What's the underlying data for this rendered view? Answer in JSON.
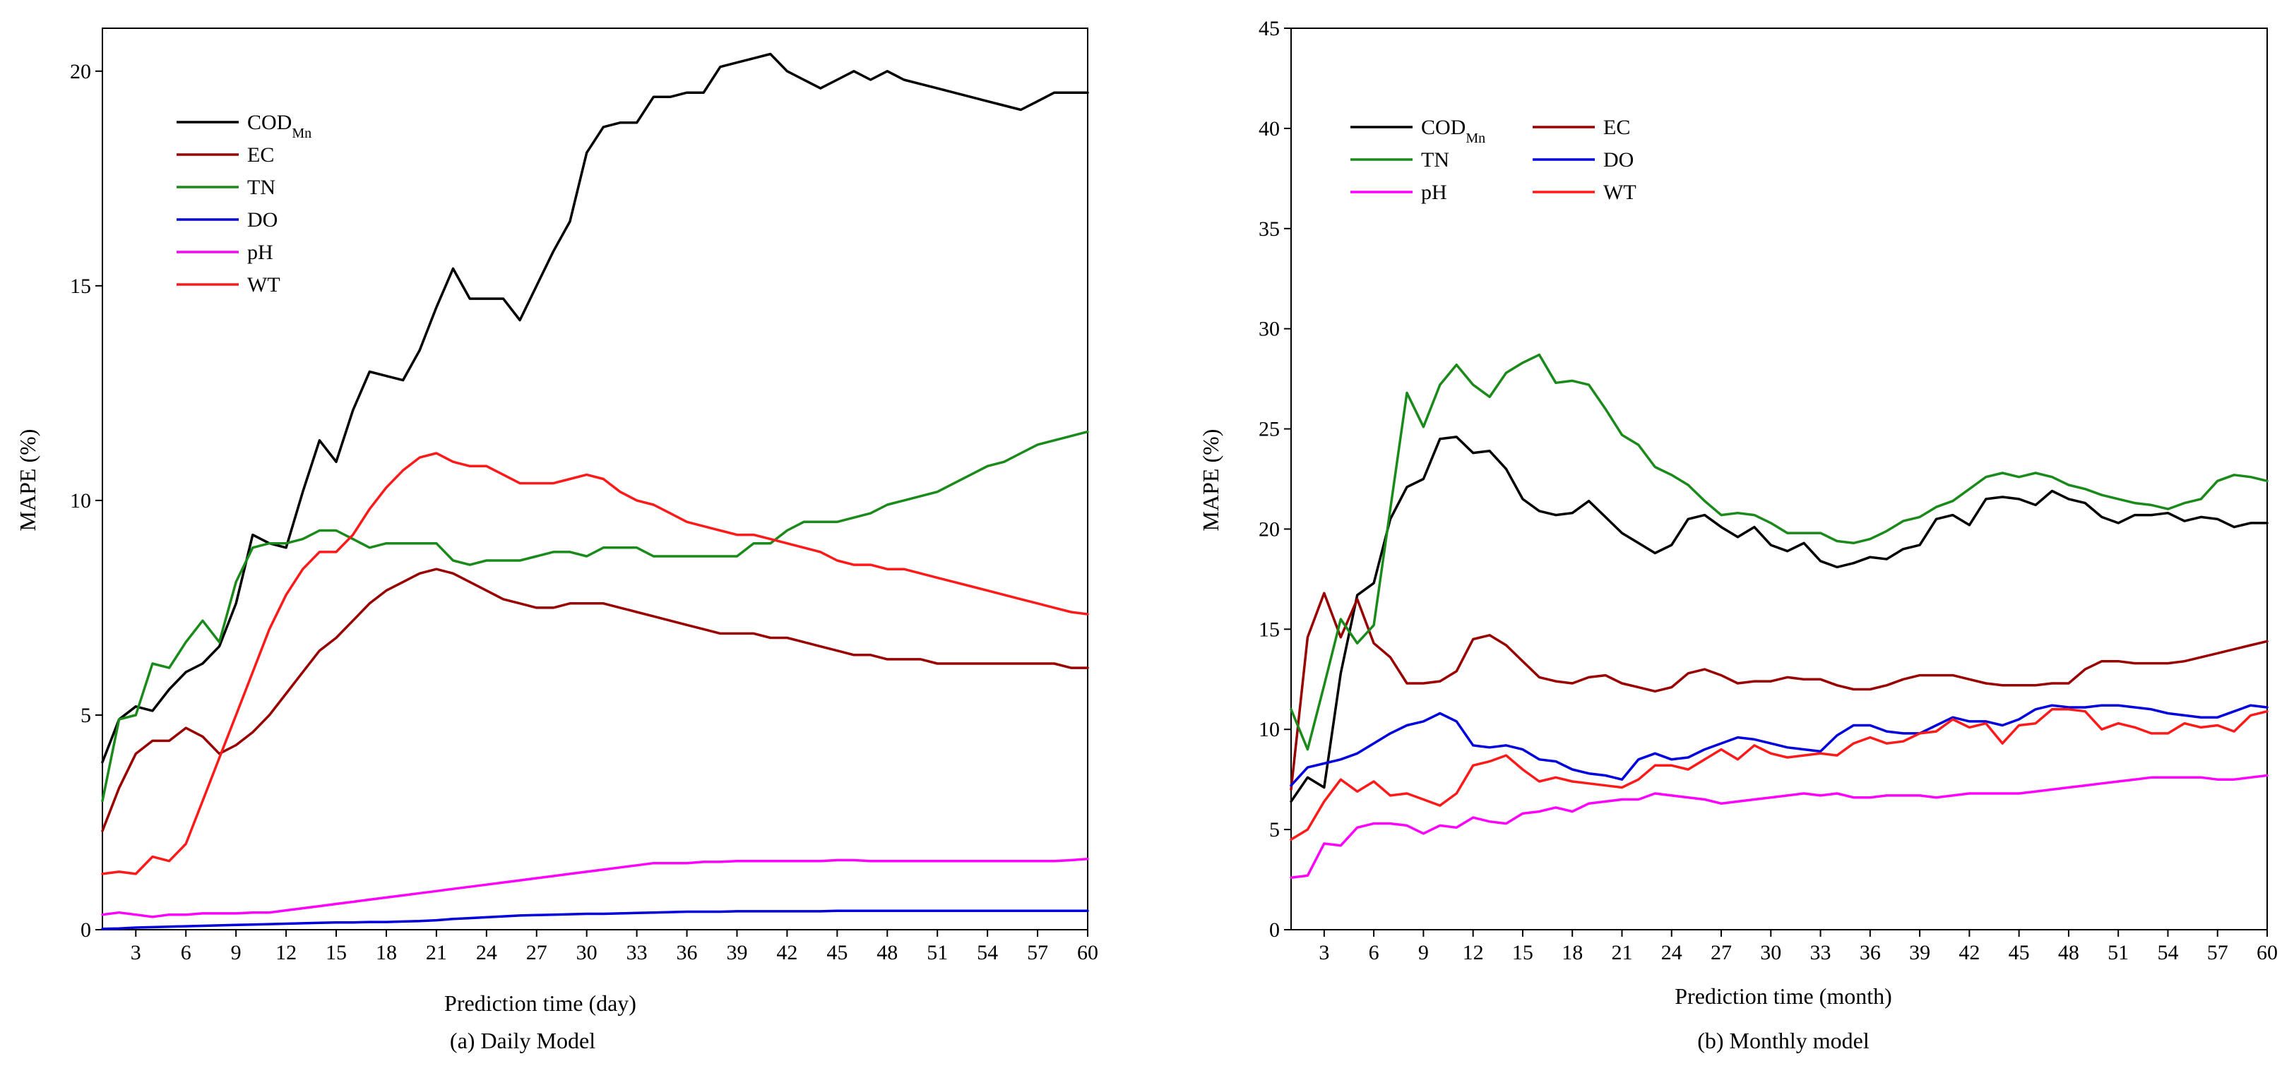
{
  "chart_data": [
    {
      "type": "line",
      "caption": "(a) Daily Model",
      "xlabel": "Prediction time (day)",
      "ylabel": "MAPE (%)",
      "xlim": [
        1,
        60
      ],
      "ylim": [
        0,
        21
      ],
      "xticks": [
        3,
        6,
        9,
        12,
        15,
        18,
        21,
        24,
        27,
        30,
        33,
        36,
        39,
        42,
        45,
        48,
        51,
        54,
        57,
        60
      ],
      "yticks": [
        0,
        5,
        10,
        15,
        20
      ],
      "legend_position": "upper-left",
      "legend_columns": 1,
      "series": [
        {
          "name": "COD",
          "subscript": "Mn",
          "color": "#000000",
          "values": [
            3.9,
            4.9,
            5.2,
            5.1,
            5.6,
            6.0,
            6.2,
            6.6,
            7.6,
            9.2,
            9.0,
            8.9,
            10.2,
            11.4,
            10.9,
            12.1,
            13.0,
            12.9,
            12.8,
            13.5,
            14.5,
            15.4,
            14.7,
            14.7,
            14.7,
            14.2,
            15.0,
            15.8,
            16.5,
            18.1,
            18.7,
            18.8,
            18.8,
            19.4,
            19.4,
            19.5,
            19.5,
            20.1,
            20.2,
            20.3,
            20.4,
            20.0,
            19.8,
            19.6,
            19.8,
            20.0,
            19.8,
            20.0,
            19.8,
            19.7,
            19.6,
            19.5,
            19.4,
            19.3,
            19.2,
            19.1,
            19.3,
            19.5,
            19.5,
            19.5
          ]
        },
        {
          "name": "EC",
          "color": "#990000",
          "values": [
            2.3,
            3.3,
            4.1,
            4.4,
            4.4,
            4.7,
            4.5,
            4.1,
            4.3,
            4.6,
            5.0,
            5.5,
            6.0,
            6.5,
            6.8,
            7.2,
            7.6,
            7.9,
            8.1,
            8.3,
            8.4,
            8.3,
            8.1,
            7.9,
            7.7,
            7.6,
            7.5,
            7.5,
            7.6,
            7.6,
            7.6,
            7.5,
            7.4,
            7.3,
            7.2,
            7.1,
            7.0,
            6.9,
            6.9,
            6.9,
            6.8,
            6.8,
            6.7,
            6.6,
            6.5,
            6.4,
            6.4,
            6.3,
            6.3,
            6.3,
            6.2,
            6.2,
            6.2,
            6.2,
            6.2,
            6.2,
            6.2,
            6.2,
            6.1,
            6.1
          ]
        },
        {
          "name": "TN",
          "color": "#1a8a1a",
          "values": [
            3.0,
            4.9,
            5.0,
            6.2,
            6.1,
            6.7,
            7.2,
            6.7,
            8.1,
            8.9,
            9.0,
            9.0,
            9.1,
            9.3,
            9.3,
            9.1,
            8.9,
            9.0,
            9.0,
            9.0,
            9.0,
            8.6,
            8.5,
            8.6,
            8.6,
            8.6,
            8.7,
            8.8,
            8.8,
            8.7,
            8.9,
            8.9,
            8.9,
            8.7,
            8.7,
            8.7,
            8.7,
            8.7,
            8.7,
            9.0,
            9.0,
            9.3,
            9.5,
            9.5,
            9.5,
            9.6,
            9.7,
            9.9,
            10.0,
            10.1,
            10.2,
            10.4,
            10.6,
            10.8,
            10.9,
            11.1,
            11.3,
            11.4,
            11.5,
            11.6
          ]
        },
        {
          "name": "DO",
          "color": "#0000dd",
          "values": [
            0.02,
            0.03,
            0.05,
            0.06,
            0.07,
            0.08,
            0.09,
            0.1,
            0.11,
            0.12,
            0.13,
            0.14,
            0.15,
            0.16,
            0.17,
            0.17,
            0.18,
            0.18,
            0.19,
            0.2,
            0.22,
            0.25,
            0.27,
            0.29,
            0.31,
            0.33,
            0.34,
            0.35,
            0.36,
            0.37,
            0.37,
            0.38,
            0.39,
            0.4,
            0.41,
            0.42,
            0.42,
            0.42,
            0.43,
            0.43,
            0.43,
            0.43,
            0.43,
            0.43,
            0.44,
            0.44,
            0.44,
            0.44,
            0.44,
            0.44,
            0.44,
            0.44,
            0.44,
            0.44,
            0.44,
            0.44,
            0.44,
            0.44,
            0.44,
            0.44
          ]
        },
        {
          "name": "pH",
          "color": "#ff00ff",
          "values": [
            0.35,
            0.4,
            0.35,
            0.3,
            0.35,
            0.35,
            0.38,
            0.38,
            0.38,
            0.4,
            0.4,
            0.45,
            0.5,
            0.55,
            0.6,
            0.65,
            0.7,
            0.75,
            0.8,
            0.85,
            0.9,
            0.95,
            1.0,
            1.05,
            1.1,
            1.15,
            1.2,
            1.25,
            1.3,
            1.35,
            1.4,
            1.45,
            1.5,
            1.55,
            1.55,
            1.55,
            1.58,
            1.58,
            1.6,
            1.6,
            1.6,
            1.6,
            1.6,
            1.6,
            1.62,
            1.62,
            1.6,
            1.6,
            1.6,
            1.6,
            1.6,
            1.6,
            1.6,
            1.6,
            1.6,
            1.6,
            1.6,
            1.6,
            1.62,
            1.65
          ]
        },
        {
          "name": "WT",
          "color": "#ff1a1a",
          "values": [
            1.3,
            1.35,
            1.3,
            1.7,
            1.6,
            2.0,
            3.0,
            4.0,
            5.0,
            6.0,
            7.0,
            7.8,
            8.4,
            8.8,
            8.8,
            9.2,
            9.8,
            10.3,
            10.7,
            11.0,
            11.1,
            10.9,
            10.8,
            10.8,
            10.6,
            10.4,
            10.4,
            10.4,
            10.5,
            10.6,
            10.5,
            10.2,
            10.0,
            9.9,
            9.7,
            9.5,
            9.4,
            9.3,
            9.2,
            9.2,
            9.1,
            9.0,
            8.9,
            8.8,
            8.6,
            8.5,
            8.5,
            8.4,
            8.4,
            8.3,
            8.2,
            8.1,
            8.0,
            7.9,
            7.8,
            7.7,
            7.6,
            7.5,
            7.4,
            7.35
          ]
        }
      ]
    },
    {
      "type": "line",
      "caption": "(b) Monthly model",
      "xlabel": "Prediction time (month)",
      "ylabel": "MAPE (%)",
      "xlim": [
        1,
        60
      ],
      "ylim": [
        0,
        45
      ],
      "xticks": [
        3,
        6,
        9,
        12,
        15,
        18,
        21,
        24,
        27,
        30,
        33,
        36,
        39,
        42,
        45,
        48,
        51,
        54,
        57,
        60
      ],
      "yticks": [
        0,
        5,
        10,
        15,
        20,
        25,
        30,
        35,
        40,
        45
      ],
      "legend_position": "upper-left",
      "legend_columns": 2,
      "series": [
        {
          "name": "COD",
          "subscript": "Mn",
          "color": "#000000",
          "values": [
            6.4,
            7.6,
            7.1,
            12.8,
            16.7,
            17.3,
            20.5,
            22.1,
            22.5,
            24.5,
            24.6,
            23.8,
            23.9,
            23.0,
            21.5,
            20.9,
            20.7,
            20.8,
            21.4,
            20.6,
            19.8,
            19.3,
            18.8,
            19.2,
            20.5,
            20.7,
            20.1,
            19.6,
            20.1,
            19.2,
            18.9,
            19.3,
            18.4,
            18.1,
            18.3,
            18.6,
            18.5,
            19.0,
            19.2,
            20.5,
            20.7,
            20.2,
            21.5,
            21.6,
            21.5,
            21.2,
            21.9,
            21.5,
            21.3,
            20.6,
            20.3,
            20.7,
            20.7,
            20.8,
            20.4,
            20.6,
            20.5,
            20.1,
            20.3,
            20.3
          ]
        },
        {
          "name": "EC",
          "color": "#990000",
          "values": [
            7.0,
            14.6,
            16.8,
            14.6,
            16.5,
            14.3,
            13.6,
            12.3,
            12.3,
            12.4,
            12.9,
            14.5,
            14.7,
            14.2,
            13.4,
            12.6,
            12.4,
            12.3,
            12.6,
            12.7,
            12.3,
            12.1,
            11.9,
            12.1,
            12.8,
            13.0,
            12.7,
            12.3,
            12.4,
            12.4,
            12.6,
            12.5,
            12.5,
            12.2,
            12.0,
            12.0,
            12.2,
            12.5,
            12.7,
            12.7,
            12.7,
            12.5,
            12.3,
            12.2,
            12.2,
            12.2,
            12.3,
            12.3,
            13.0,
            13.4,
            13.4,
            13.3,
            13.3,
            13.3,
            13.4,
            13.6,
            13.8,
            14.0,
            14.2,
            14.4
          ]
        },
        {
          "name": "TN",
          "color": "#1a8a1a",
          "values": [
            11.0,
            9.0,
            12.2,
            15.5,
            14.3,
            15.2,
            21.0,
            26.8,
            25.1,
            27.2,
            28.2,
            27.2,
            26.6,
            27.8,
            28.3,
            28.7,
            27.3,
            27.4,
            27.2,
            26.0,
            24.7,
            24.2,
            23.1,
            22.7,
            22.2,
            21.4,
            20.7,
            20.8,
            20.7,
            20.3,
            19.8,
            19.8,
            19.8,
            19.4,
            19.3,
            19.5,
            19.9,
            20.4,
            20.6,
            21.1,
            21.4,
            22.0,
            22.6,
            22.8,
            22.6,
            22.8,
            22.6,
            22.2,
            22.0,
            21.7,
            21.5,
            21.3,
            21.2,
            21.0,
            21.3,
            21.5,
            22.4,
            22.7,
            22.6,
            22.4
          ]
        },
        {
          "name": "DO",
          "color": "#0000dd",
          "values": [
            7.2,
            8.1,
            8.3,
            8.5,
            8.8,
            9.3,
            9.8,
            10.2,
            10.4,
            10.8,
            10.4,
            9.2,
            9.1,
            9.2,
            9.0,
            8.5,
            8.4,
            8.0,
            7.8,
            7.7,
            7.5,
            8.5,
            8.8,
            8.5,
            8.6,
            9.0,
            9.3,
            9.6,
            9.5,
            9.3,
            9.1,
            9.0,
            8.9,
            9.7,
            10.2,
            10.2,
            9.9,
            9.8,
            9.8,
            10.2,
            10.6,
            10.4,
            10.4,
            10.2,
            10.5,
            11.0,
            11.2,
            11.1,
            11.1,
            11.2,
            11.2,
            11.1,
            11.0,
            10.8,
            10.7,
            10.6,
            10.6,
            10.9,
            11.2,
            11.1
          ]
        },
        {
          "name": "pH",
          "color": "#ff00ff",
          "values": [
            2.6,
            2.7,
            4.3,
            4.2,
            5.1,
            5.3,
            5.3,
            5.2,
            4.8,
            5.2,
            5.1,
            5.6,
            5.4,
            5.3,
            5.8,
            5.9,
            6.1,
            5.9,
            6.3,
            6.4,
            6.5,
            6.5,
            6.8,
            6.7,
            6.6,
            6.5,
            6.3,
            6.4,
            6.5,
            6.6,
            6.7,
            6.8,
            6.7,
            6.8,
            6.6,
            6.6,
            6.7,
            6.7,
            6.7,
            6.6,
            6.7,
            6.8,
            6.8,
            6.8,
            6.8,
            6.9,
            7.0,
            7.1,
            7.2,
            7.3,
            7.4,
            7.5,
            7.6,
            7.6,
            7.6,
            7.6,
            7.5,
            7.5,
            7.6,
            7.7
          ]
        },
        {
          "name": "WT",
          "color": "#ff1a1a",
          "values": [
            4.5,
            5.0,
            6.4,
            7.5,
            6.9,
            7.4,
            6.7,
            6.8,
            6.5,
            6.2,
            6.8,
            8.2,
            8.4,
            8.7,
            8.0,
            7.4,
            7.6,
            7.4,
            7.3,
            7.2,
            7.1,
            7.5,
            8.2,
            8.2,
            8.0,
            8.5,
            9.0,
            8.5,
            9.2,
            8.8,
            8.6,
            8.7,
            8.8,
            8.7,
            9.3,
            9.6,
            9.3,
            9.4,
            9.8,
            9.9,
            10.5,
            10.1,
            10.3,
            9.3,
            10.2,
            10.3,
            11.0,
            11.0,
            10.9,
            10.0,
            10.3,
            10.1,
            9.8,
            9.8,
            10.3,
            10.1,
            10.2,
            9.9,
            10.7,
            10.9
          ]
        }
      ]
    }
  ]
}
